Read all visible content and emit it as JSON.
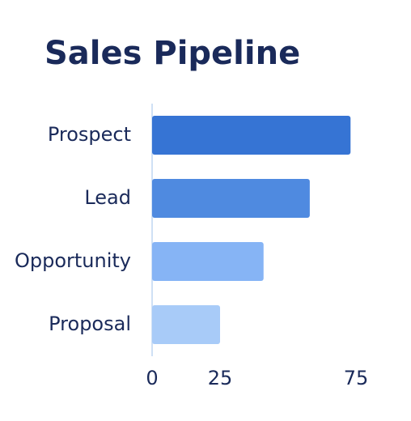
{
  "chart_data": {
    "type": "bar",
    "orientation": "horizontal",
    "title": "Sales Pipeline",
    "categories": [
      "Prospect",
      "Lead",
      "Opportunity",
      "Proposal"
    ],
    "values": [
      73,
      58,
      41,
      25
    ],
    "colors": [
      "#3674d4",
      "#4f8ae0",
      "#86b4f5",
      "#a8cbf8"
    ],
    "xlim": [
      0,
      75
    ],
    "xticks": [
      0,
      25,
      75
    ]
  }
}
